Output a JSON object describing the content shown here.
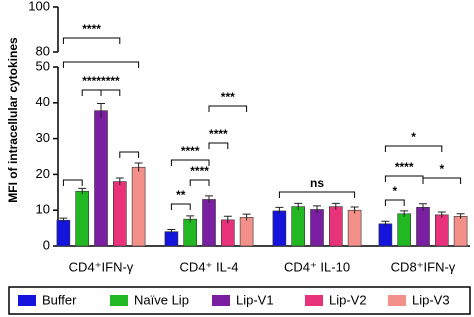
{
  "chart_data": {
    "type": "bar",
    "y_label": "MFI of intracellular cytokines",
    "categories": [
      "CD4⁺IFN-γ",
      "CD4⁺ IL-4",
      "CD4⁺ IL-10",
      "CD8⁺IFN-γ"
    ],
    "series": [
      {
        "name": "Buffer",
        "color": "#1414dc",
        "values": [
          7.2,
          4.0,
          9.8,
          6.2
        ],
        "errors": [
          0.6,
          0.6,
          1.0,
          0.7
        ]
      },
      {
        "name": "Naïve Lip",
        "color": "#22b822",
        "values": [
          15.3,
          7.5,
          11.0,
          9.0
        ],
        "errors": [
          0.8,
          0.9,
          0.9,
          0.8
        ]
      },
      {
        "name": "Lip-V1",
        "color": "#7a1fa2",
        "values": [
          37.8,
          13.0,
          10.2,
          10.8
        ],
        "errors": [
          2.0,
          1.0,
          1.0,
          1.0
        ]
      },
      {
        "name": "Lip-V2",
        "color": "#e8327a",
        "values": [
          18.0,
          7.3,
          11.0,
          8.7
        ],
        "errors": [
          1.0,
          1.0,
          0.9,
          0.8
        ]
      },
      {
        "name": "Lip-V3",
        "color": "#f4908a",
        "values": [
          22.0,
          8.0,
          10.0,
          8.3
        ],
        "errors": [
          1.2,
          0.9,
          0.9,
          0.7
        ]
      }
    ],
    "ylim": [
      0,
      50
    ],
    "yticks": [
      0,
      10,
      20,
      30,
      40,
      50
    ],
    "ylim_upper": [
      80,
      100
    ],
    "yticks_upper": [
      80,
      100
    ],
    "annotations": [
      {
        "label": "****",
        "group": 0,
        "from": 0,
        "to": 3
      },
      {
        "label": "****",
        "group": 0,
        "from": 1,
        "to": 2
      },
      {
        "label": "****",
        "group": 0,
        "from": 2,
        "to": 3
      },
      {
        "label": "***",
        "group": 1,
        "from": 2,
        "to": 4
      },
      {
        "label": "****",
        "group": 1,
        "from": 2,
        "to": 3
      },
      {
        "label": "****",
        "group": 1,
        "from": 0,
        "to": 2
      },
      {
        "label": "****",
        "group": 1,
        "from": 1,
        "to": 2
      },
      {
        "label": "**",
        "group": 1,
        "from": 0,
        "to": 1
      },
      {
        "label": "ns",
        "group": 2,
        "from": 0,
        "to": 4
      },
      {
        "label": "*",
        "group": 3,
        "from": 0,
        "to": 3
      },
      {
        "label": "****",
        "group": 3,
        "from": 0,
        "to": 2
      },
      {
        "label": "*",
        "group": 3,
        "from": 0,
        "to": 1
      },
      {
        "label": "*",
        "group": 3,
        "from": 2,
        "to": 4
      }
    ]
  }
}
